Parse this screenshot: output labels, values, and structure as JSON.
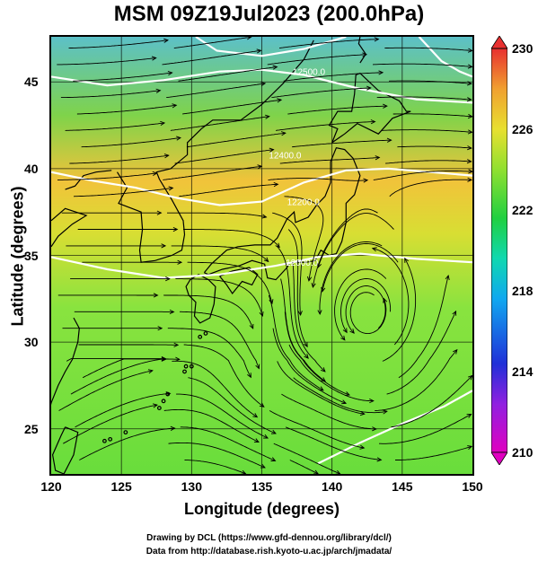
{
  "title": "MSM 09Z19Jul2023 (200.0hPa)",
  "x_axis": {
    "label": "Longitude (degrees)",
    "ticks": [
      "120",
      "125",
      "130",
      "135",
      "140",
      "145",
      "150"
    ]
  },
  "y_axis": {
    "label": "Latitude  (degrees)",
    "ticks": [
      "25",
      "30",
      "35",
      "40",
      "45"
    ]
  },
  "colorbar": {
    "ticks": [
      "210",
      "214",
      "218",
      "222",
      "226",
      "230"
    ],
    "colors": [
      "#e000c0",
      "#2030d8",
      "#10c8e0",
      "#20d040",
      "#e8e030",
      "#e83030"
    ]
  },
  "contours": [
    "12000.0",
    "12200.0",
    "12400.0",
    "12500.0"
  ],
  "footer": {
    "line1": "Drawing by DCL (https://www.gfd-dennou.org/library/dcl/)",
    "line2": "Data from http://database.rish.kyoto-u.ac.jp/arch/jmadata/"
  }
}
